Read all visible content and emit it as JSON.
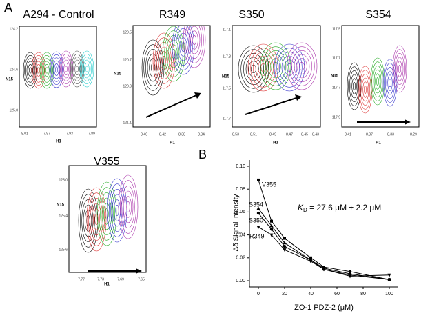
{
  "panel_labels": [
    "A",
    "B"
  ],
  "panels": [
    {
      "title": "A294 - Control",
      "y_label": "N15",
      "x_label": "H1",
      "y_ticks": [
        "124.2",
        "124.6",
        "125.0"
      ],
      "x_ticks": [
        "8.01",
        "7.97",
        "7.93",
        "7.89"
      ]
    },
    {
      "title": "R349",
      "y_label": "N15",
      "x_label": "H1",
      "y_ticks": [
        "120.5",
        "120.7",
        "120.9",
        "121.1"
      ],
      "x_ticks": [
        "8.46",
        "8.42",
        "8.38",
        "8.34"
      ]
    },
    {
      "title": "S350",
      "y_label": "N15",
      "x_label": "H1",
      "y_ticks": [
        "117.1",
        "117.3",
        "117.5",
        "117.7"
      ],
      "x_ticks": [
        "8.53",
        "8.51",
        "8.49",
        "8.47",
        "8.45",
        "8.43"
      ]
    },
    {
      "title": "S354",
      "y_label": "N15",
      "x_label": "H1",
      "y_ticks": [
        "117.5",
        "117.7",
        "117.7",
        "117.9"
      ],
      "x_ticks": [
        "8.41",
        "8.37",
        "8.33",
        "8.29"
      ]
    },
    {
      "title": "V355",
      "y_label": "N15",
      "x_label": "H1",
      "y_ticks": [
        "125.0",
        "125.4",
        "125.6"
      ],
      "x_ticks": [
        "7.77",
        "7.73",
        "7.69",
        "7.65"
      ]
    }
  ],
  "chart_data": {
    "type": "scatter",
    "x_label": "ZO-1 PDZ-2 (μM)",
    "y_label": "Δδ Signal Intensity",
    "annotation": {
      "k": "K",
      "sub": "D",
      "rest": " = 27.6 μM ± 2.2 μM"
    },
    "xlim": [
      0,
      100
    ],
    "xticks": [
      0,
      20,
      40,
      60,
      80,
      100
    ],
    "ylim": [
      0,
      0.1
    ],
    "yticks": [
      {
        "value": 0,
        "label": "0.00"
      },
      {
        "value": 0.02,
        "label": "0.02"
      },
      {
        "value": 0.04,
        "label": "0.04"
      },
      {
        "value": 0.06,
        "label": "0.06"
      },
      {
        "value": 0.08,
        "label": "0.08"
      },
      {
        "value": 0.1,
        "label": "0.10"
      }
    ],
    "x": [
      0,
      10,
      20,
      40,
      50,
      70,
      100
    ],
    "series": [
      {
        "name": "V355",
        "color": "#000000",
        "marker": "square",
        "values": [
          0.088,
          0.052,
          0.037,
          0.02,
          0.012,
          0.008,
          0.001
        ]
      },
      {
        "name": "S354",
        "color": "#000000",
        "marker": "triangle-up",
        "values": [
          0.063,
          0.048,
          0.033,
          0.018,
          0.011,
          0.006,
          0.001
        ]
      },
      {
        "name": "S350",
        "color": "#000000",
        "marker": "circle",
        "values": [
          0.059,
          0.045,
          0.03,
          0.018,
          0.01,
          0.005,
          0.001
        ]
      },
      {
        "name": "R349",
        "color": "#000000",
        "marker": "triangle-down",
        "values": [
          0.047,
          0.04,
          0.027,
          0.017,
          0.01,
          0.004,
          0.005
        ]
      }
    ]
  }
}
